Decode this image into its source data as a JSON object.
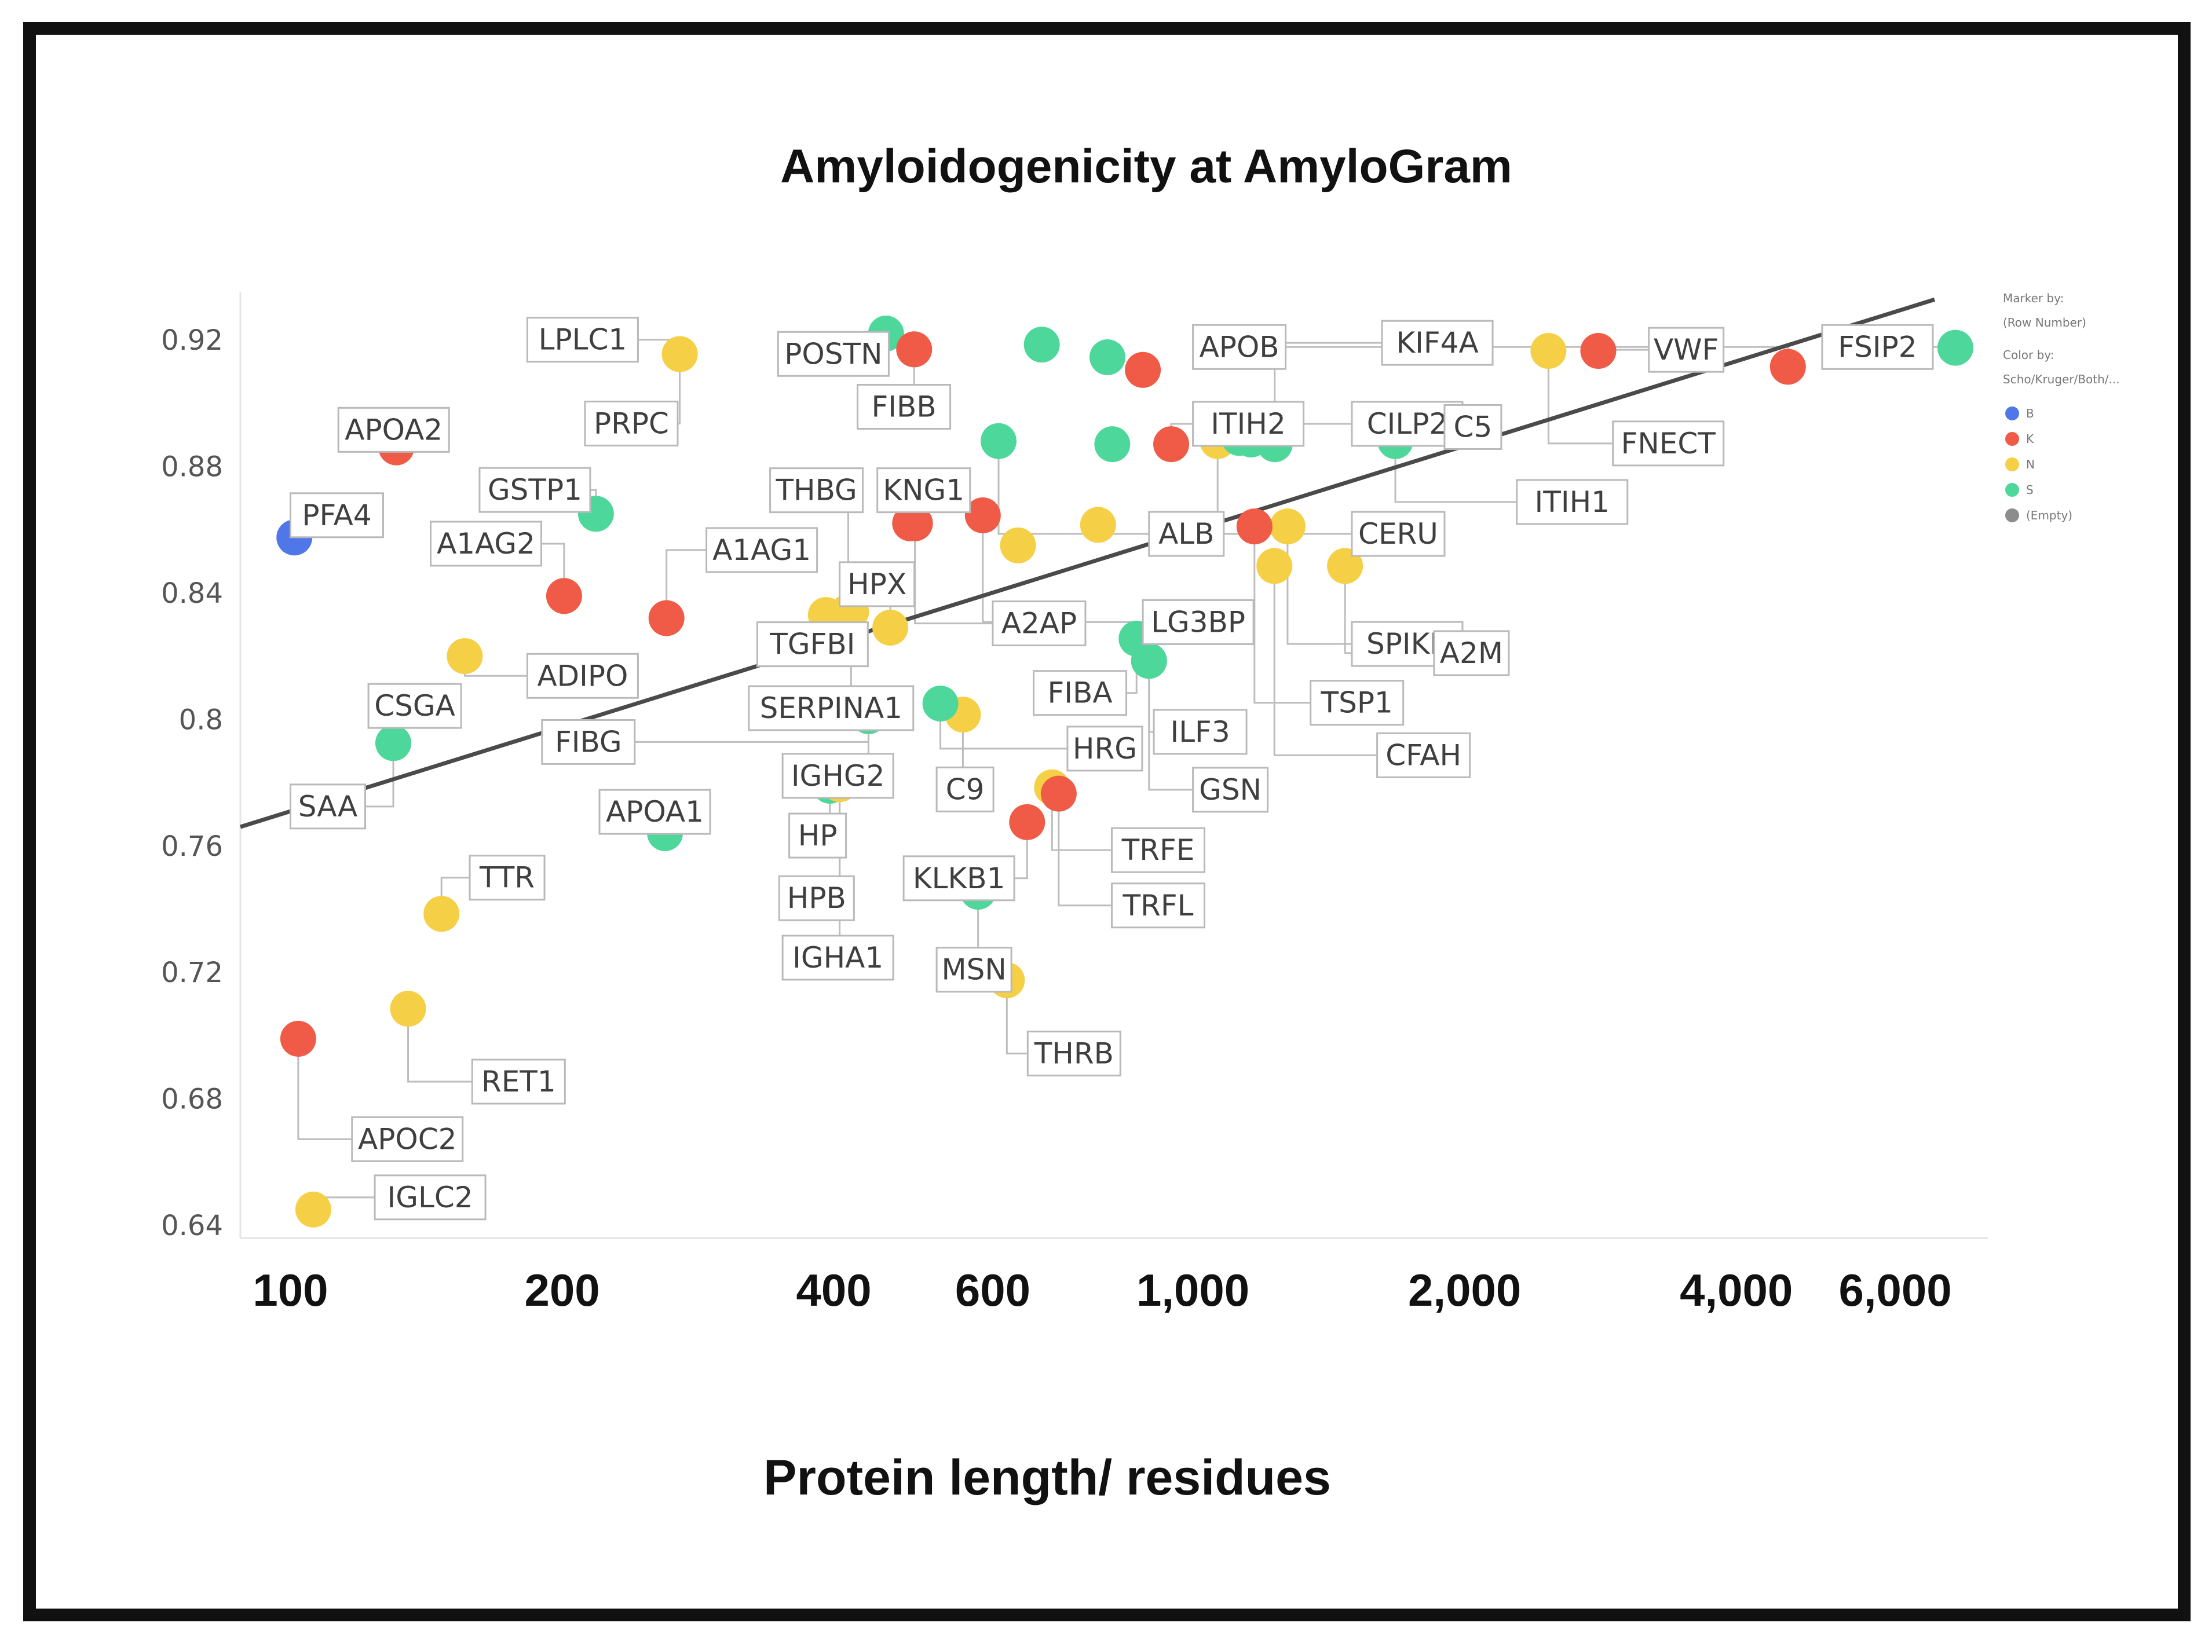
{
  "chart_data": {
    "type": "scatter",
    "title": "Amyloidogenicity at AmyloGram",
    "xlabel": "Protein length/ residues",
    "ylabel": "",
    "xscale": "log",
    "xlim": [
      88,
      7600
    ],
    "ylim": [
      0.636,
      0.935
    ],
    "x_ticks": [
      {
        "value": 100,
        "label": "100"
      },
      {
        "value": 200,
        "label": "200"
      },
      {
        "value": 400,
        "label": "400"
      },
      {
        "value": 600,
        "label": "600"
      },
      {
        "value": 1000,
        "label": "1,000"
      },
      {
        "value": 2000,
        "label": "2,000"
      },
      {
        "value": 4000,
        "label": "4,000"
      },
      {
        "value": 6000,
        "label": "6,000"
      }
    ],
    "y_ticks": [
      {
        "value": 0.64,
        "label": "0.64"
      },
      {
        "value": 0.68,
        "label": "0.68"
      },
      {
        "value": 0.72,
        "label": "0.72"
      },
      {
        "value": 0.76,
        "label": "0.76"
      },
      {
        "value": 0.8,
        "label": "0.8"
      },
      {
        "value": 0.84,
        "label": "0.84"
      },
      {
        "value": 0.88,
        "label": "0.88"
      },
      {
        "value": 0.92,
        "label": "0.92"
      }
    ],
    "trendline": {
      "x": [
        88,
        7600
      ],
      "y": [
        0.766,
        0.938
      ]
    },
    "legend": {
      "placement": "top-right",
      "marker_by_title": "Marker by:",
      "marker_by_value": "(Row Number)",
      "color_by_title": "Color by:",
      "color_by_value": "Scho/Kruger/Both/...",
      "entries": [
        {
          "group": "B",
          "label": "B",
          "color": "#4f77e8"
        },
        {
          "group": "K",
          "label": "K",
          "color": "#ef5b47"
        },
        {
          "group": "N",
          "label": "N",
          "color": "#f5cf45"
        },
        {
          "group": "S",
          "label": "S",
          "color": "#4ed79a"
        },
        {
          "group": "E",
          "label": "(Empty)",
          "color": "#8c8c8c"
        }
      ]
    },
    "points": [
      {
        "name": "PFA4",
        "x": 101,
        "y": 0.8575,
        "group": "B",
        "lx": 100,
        "ly": 0.8715
      },
      {
        "name": "APOA2",
        "x": 131,
        "y": 0.886,
        "group": "K",
        "lx": 113,
        "ly": 0.8985
      },
      {
        "name": "LPLC1",
        "x": 270,
        "y": 0.9155,
        "group": "N",
        "lx": 183,
        "ly": 0.927
      },
      {
        "name": "PRPC",
        "x": 270,
        "y": 0.9155,
        "group": "N",
        "lx": 212,
        "ly": 0.9005
      },
      {
        "name": "POSTN",
        "x": 457,
        "y": 0.922,
        "group": "S",
        "lx": 347,
        "ly": 0.9225
      },
      {
        "name": "GSTP1",
        "x": 218,
        "y": 0.865,
        "group": "S",
        "lx": 162,
        "ly": 0.8795
      },
      {
        "name": "A1AG2",
        "x": 201,
        "y": 0.839,
        "group": "K",
        "lx": 143,
        "ly": 0.8625
      },
      {
        "name": "A1AG1",
        "x": 261,
        "y": 0.832,
        "group": "K",
        "lx": 289,
        "ly": 0.8605
      },
      {
        "name": "ADIPO",
        "x": 156,
        "y": 0.82,
        "group": "N",
        "lx": 183,
        "ly": 0.8207
      },
      {
        "name": "CSGA",
        "x": 130,
        "y": 0.7925,
        "group": "S",
        "lx": 122,
        "ly": 0.8112
      },
      {
        "name": "SAA",
        "x": 130,
        "y": 0.7925,
        "group": "S",
        "lx": 100,
        "ly": 0.7794
      },
      {
        "name": "FIBG",
        "x": 437,
        "y": 0.801,
        "group": "S",
        "lx": 190,
        "ly": 0.7998
      },
      {
        "name": "SERPINA1",
        "x": 418,
        "y": 0.834,
        "group": "N",
        "lx": 322,
        "ly": 0.8105
      },
      {
        "name": "TGFBI",
        "x": 392,
        "y": 0.833,
        "group": "N",
        "lx": 329,
        "ly": 0.8307
      },
      {
        "name": "HPX",
        "x": 462,
        "y": 0.829,
        "group": "N",
        "lx": 406,
        "ly": 0.8497
      },
      {
        "name": "THBG",
        "x": 415,
        "y": 0.834,
        "group": "N",
        "lx": 340,
        "ly": 0.8794
      },
      {
        "name": "KNG1",
        "x": 486,
        "y": 0.862,
        "group": "K",
        "lx": 447,
        "ly": 0.8794
      },
      {
        "name": "FIBB",
        "x": 491,
        "y": 0.917,
        "group": "K",
        "lx": 425,
        "ly": 0.9058
      },
      {
        "name": "A2AP",
        "x": 492,
        "y": 0.862,
        "group": "K",
        "lx": 600,
        "ly": 0.8373
      },
      {
        "name": "IGHG2",
        "x": 437,
        "y": 0.801,
        "group": "S",
        "lx": 351,
        "ly": 0.7891
      },
      {
        "name": "APOA1",
        "x": 260,
        "y": 0.764,
        "group": "S",
        "lx": 220,
        "ly": 0.7777
      },
      {
        "name": "HP",
        "x": 396,
        "y": 0.779,
        "group": "S",
        "lx": 357,
        "ly": 0.7702
      },
      {
        "name": "HPB",
        "x": 406,
        "y": 0.7795,
        "group": "N",
        "lx": 348,
        "ly": 0.7504
      },
      {
        "name": "IGHA1",
        "x": 406,
        "y": 0.7795,
        "group": "N",
        "lx": 351,
        "ly": 0.7316
      },
      {
        "name": "C9",
        "x": 556,
        "y": 0.8015,
        "group": "N",
        "lx": 520,
        "ly": 0.7848
      },
      {
        "name": "KLKB1",
        "x": 655,
        "y": 0.7675,
        "group": "K",
        "lx": 478,
        "ly": 0.7567
      },
      {
        "name": "MSN",
        "x": 578,
        "y": 0.7455,
        "group": "S",
        "lx": 520,
        "ly": 0.7278
      },
      {
        "name": "THRB",
        "x": 622,
        "y": 0.7175,
        "group": "N",
        "lx": 656,
        "ly": 0.7013
      },
      {
        "name": "TRFE",
        "x": 698,
        "y": 0.7785,
        "group": "N",
        "lx": 813,
        "ly": 0.7656
      },
      {
        "name": "TRFL",
        "x": 710,
        "y": 0.7765,
        "group": "K",
        "lx": 813,
        "ly": 0.7481
      },
      {
        "name": "FIBA",
        "x": 866,
        "y": 0.8255,
        "group": "S",
        "lx": 666,
        "ly": 0.8153
      },
      {
        "name": "HRG",
        "x": 525,
        "y": 0.805,
        "group": "S",
        "lx": 726,
        "ly": 0.7977
      },
      {
        "name": "ILF3",
        "x": 894,
        "y": 0.8185,
        "group": "S",
        "lx": 905,
        "ly": 0.803
      },
      {
        "name": "GSN",
        "x": 894,
        "y": 0.8185,
        "group": "S",
        "lx": 1000,
        "ly": 0.7847
      },
      {
        "name": "APOB",
        "x": 4563,
        "y": 0.9115,
        "group": "K",
        "lx": 1000,
        "ly": 0.9247
      },
      {
        "name": "ITIH2",
        "x": 946,
        "y": 0.887,
        "group": "K",
        "lx": 1000,
        "ly": 0.9004
      },
      {
        "name": "ALB",
        "x": 609,
        "y": 0.888,
        "group": "S",
        "lx": 894,
        "ly": 0.8656
      },
      {
        "name": "LG3BP",
        "x": 585,
        "y": 0.8645,
        "group": "K",
        "lx": 880,
        "ly": 0.8377
      },
      {
        "name": "KIF4A",
        "x": 1232,
        "y": 0.887,
        "group": "S",
        "lx": 1620,
        "ly": 0.926
      },
      {
        "name": "CILP2",
        "x": 1160,
        "y": 0.8885,
        "group": "S",
        "lx": 1500,
        "ly": 0.9004
      },
      {
        "name": "C5",
        "x": 1676,
        "y": 0.888,
        "group": "S",
        "lx": 1900,
        "ly": 0.8994
      },
      {
        "name": "CERU",
        "x": 1065,
        "y": 0.888,
        "group": "N",
        "lx": 1500,
        "ly": 0.8656
      },
      {
        "name": "ITIH1",
        "x": 1676,
        "y": 0.888,
        "group": "S",
        "lx": 2285,
        "ly": 0.8757
      },
      {
        "name": "SPIKE",
        "x": 1273,
        "y": 0.861,
        "group": "N",
        "lx": 1500,
        "ly": 0.8308
      },
      {
        "name": "A2M",
        "x": 1474,
        "y": 0.8485,
        "group": "N",
        "lx": 1850,
        "ly": 0.8279
      },
      {
        "name": "TSP1",
        "x": 1170,
        "y": 0.861,
        "group": "K",
        "lx": 1350,
        "ly": 0.8122
      },
      {
        "name": "CFAH",
        "x": 1231,
        "y": 0.8485,
        "group": "N",
        "lx": 1600,
        "ly": 0.7956
      },
      {
        "name": "FNECT",
        "x": 2477,
        "y": 0.9165,
        "group": "N",
        "lx": 2920,
        "ly": 0.8942
      },
      {
        "name": "VWF",
        "x": 2813,
        "y": 0.9165,
        "group": "K",
        "lx": 3200,
        "ly": 0.9238
      },
      {
        "name": "FSIP2",
        "x": 6996,
        "y": 0.9175,
        "group": "S",
        "lx": 4980,
        "ly": 0.9247
      },
      {
        "name": "TTR",
        "x": 147,
        "y": 0.7385,
        "group": "N",
        "lx": 158,
        "ly": 0.7569
      },
      {
        "name": "RET1",
        "x": 135,
        "y": 0.7085,
        "group": "N",
        "lx": 159,
        "ly": 0.6924
      },
      {
        "name": "APOC2",
        "x": 102,
        "y": 0.699,
        "group": "K",
        "lx": 117,
        "ly": 0.6742
      },
      {
        "name": "IGLC2",
        "x": 106,
        "y": 0.645,
        "group": "N",
        "lx": 124,
        "ly": 0.6558
      },
      {
        "name": "",
        "x": 785,
        "y": 0.8615,
        "group": "N"
      },
      {
        "name": "",
        "x": 640,
        "y": 0.855,
        "group": "N"
      },
      {
        "name": "",
        "x": 680,
        "y": 0.9185,
        "group": "S"
      },
      {
        "name": "",
        "x": 804,
        "y": 0.9145,
        "group": "S"
      },
      {
        "name": "",
        "x": 880,
        "y": 0.9105,
        "group": "K"
      },
      {
        "name": "",
        "x": 814,
        "y": 0.887,
        "group": "S"
      },
      {
        "name": "",
        "x": 1125,
        "y": 0.889,
        "group": "S"
      }
    ]
  }
}
